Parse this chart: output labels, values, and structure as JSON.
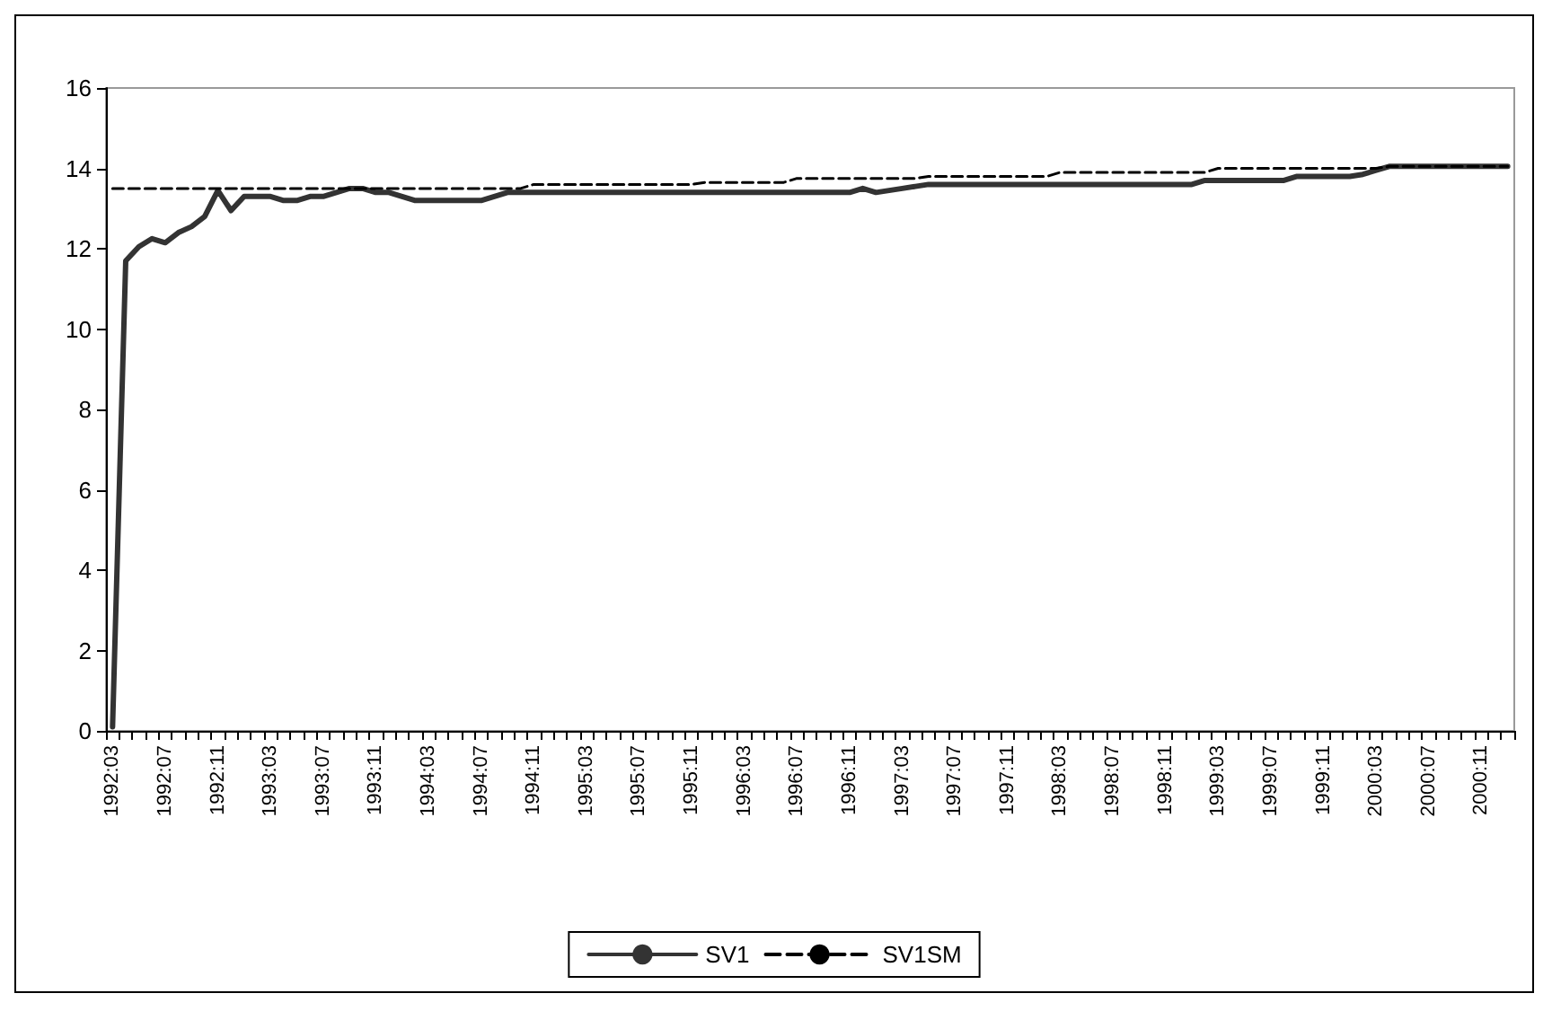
{
  "chart_data": {
    "type": "line",
    "categories": [
      "1992:03",
      null,
      null,
      null,
      "1992:07",
      null,
      null,
      null,
      "1992:11",
      null,
      null,
      null,
      "1993:03",
      null,
      null,
      null,
      "1993:07",
      null,
      null,
      null,
      "1993:11",
      null,
      null,
      null,
      "1994:03",
      null,
      null,
      null,
      "1994:07",
      null,
      null,
      null,
      "1994:11",
      null,
      null,
      null,
      "1995:03",
      null,
      null,
      null,
      "1995:07",
      null,
      null,
      null,
      "1995:11",
      null,
      null,
      null,
      "1996:03",
      null,
      null,
      null,
      "1996:07",
      null,
      null,
      null,
      "1996:11",
      null,
      null,
      null,
      "1997:03",
      null,
      null,
      null,
      "1997:07",
      null,
      null,
      null,
      "1997:11",
      null,
      null,
      null,
      "1998:03",
      null,
      null,
      null,
      "1998:07",
      null,
      null,
      null,
      "1998:11",
      null,
      null,
      null,
      "1999:03",
      null,
      null,
      null,
      "1999:07",
      null,
      null,
      null,
      "1999:11",
      null,
      null,
      null,
      "2000:03",
      null,
      null,
      null,
      "2000:07",
      null,
      null,
      null,
      "2000:11",
      null,
      null
    ],
    "series": [
      {
        "name": "SV1",
        "color": "#333333",
        "line_style": "solid",
        "values": [
          0.1,
          11.7,
          12.05,
          12.25,
          12.15,
          12.4,
          12.55,
          12.8,
          13.45,
          12.95,
          13.3,
          13.3,
          13.3,
          13.2,
          13.2,
          13.3,
          13.3,
          13.4,
          13.5,
          13.5,
          13.4,
          13.4,
          13.3,
          13.2,
          13.2,
          13.2,
          13.2,
          13.2,
          13.2,
          13.3,
          13.4,
          13.4,
          13.4,
          13.4,
          13.4,
          13.4,
          13.4,
          13.4,
          13.4,
          13.4,
          13.4,
          13.4,
          13.4,
          13.4,
          13.4,
          13.4,
          13.4,
          13.4,
          13.4,
          13.4,
          13.4,
          13.4,
          13.4,
          13.4,
          13.4,
          13.4,
          13.4,
          13.5,
          13.4,
          13.45,
          13.5,
          13.55,
          13.6,
          13.6,
          13.6,
          13.6,
          13.6,
          13.6,
          13.6,
          13.6,
          13.6,
          13.6,
          13.6,
          13.6,
          13.6,
          13.6,
          13.6,
          13.6,
          13.6,
          13.6,
          13.6,
          13.6,
          13.6,
          13.7,
          13.7,
          13.7,
          13.7,
          13.7,
          13.7,
          13.7,
          13.8,
          13.8,
          13.8,
          13.8,
          13.8,
          13.85,
          13.95,
          14.05,
          14.05,
          14.05,
          14.05,
          14.05,
          14.05,
          14.05,
          14.05,
          14.05,
          14.05
        ]
      },
      {
        "name": "SV1SM",
        "color": "#000000",
        "line_style": "dashed",
        "values": [
          13.5,
          13.5,
          13.5,
          13.5,
          13.5,
          13.5,
          13.5,
          13.5,
          13.5,
          13.5,
          13.5,
          13.5,
          13.5,
          13.5,
          13.5,
          13.5,
          13.5,
          13.5,
          13.5,
          13.5,
          13.5,
          13.5,
          13.5,
          13.5,
          13.5,
          13.5,
          13.5,
          13.5,
          13.5,
          13.5,
          13.5,
          13.5,
          13.6,
          13.6,
          13.6,
          13.6,
          13.6,
          13.6,
          13.6,
          13.6,
          13.6,
          13.6,
          13.6,
          13.6,
          13.6,
          13.65,
          13.65,
          13.65,
          13.65,
          13.65,
          13.65,
          13.65,
          13.75,
          13.75,
          13.75,
          13.75,
          13.75,
          13.75,
          13.75,
          13.75,
          13.75,
          13.75,
          13.8,
          13.8,
          13.8,
          13.8,
          13.8,
          13.8,
          13.8,
          13.8,
          13.8,
          13.8,
          13.9,
          13.9,
          13.9,
          13.9,
          13.9,
          13.9,
          13.9,
          13.9,
          13.9,
          13.9,
          13.9,
          13.9,
          14.0,
          14.0,
          14.0,
          14.0,
          14.0,
          14.0,
          14.0,
          14.0,
          14.0,
          14.0,
          14.0,
          14.0,
          14.0,
          14.05,
          14.05,
          14.05,
          14.05,
          14.05,
          14.05,
          14.05,
          14.05,
          14.05,
          14.05
        ]
      }
    ],
    "ylim": [
      0,
      16
    ],
    "yticks": [
      0,
      2,
      4,
      6,
      8,
      10,
      12,
      14,
      16
    ],
    "grid": false,
    "legend": "bottom",
    "marker": "none"
  }
}
